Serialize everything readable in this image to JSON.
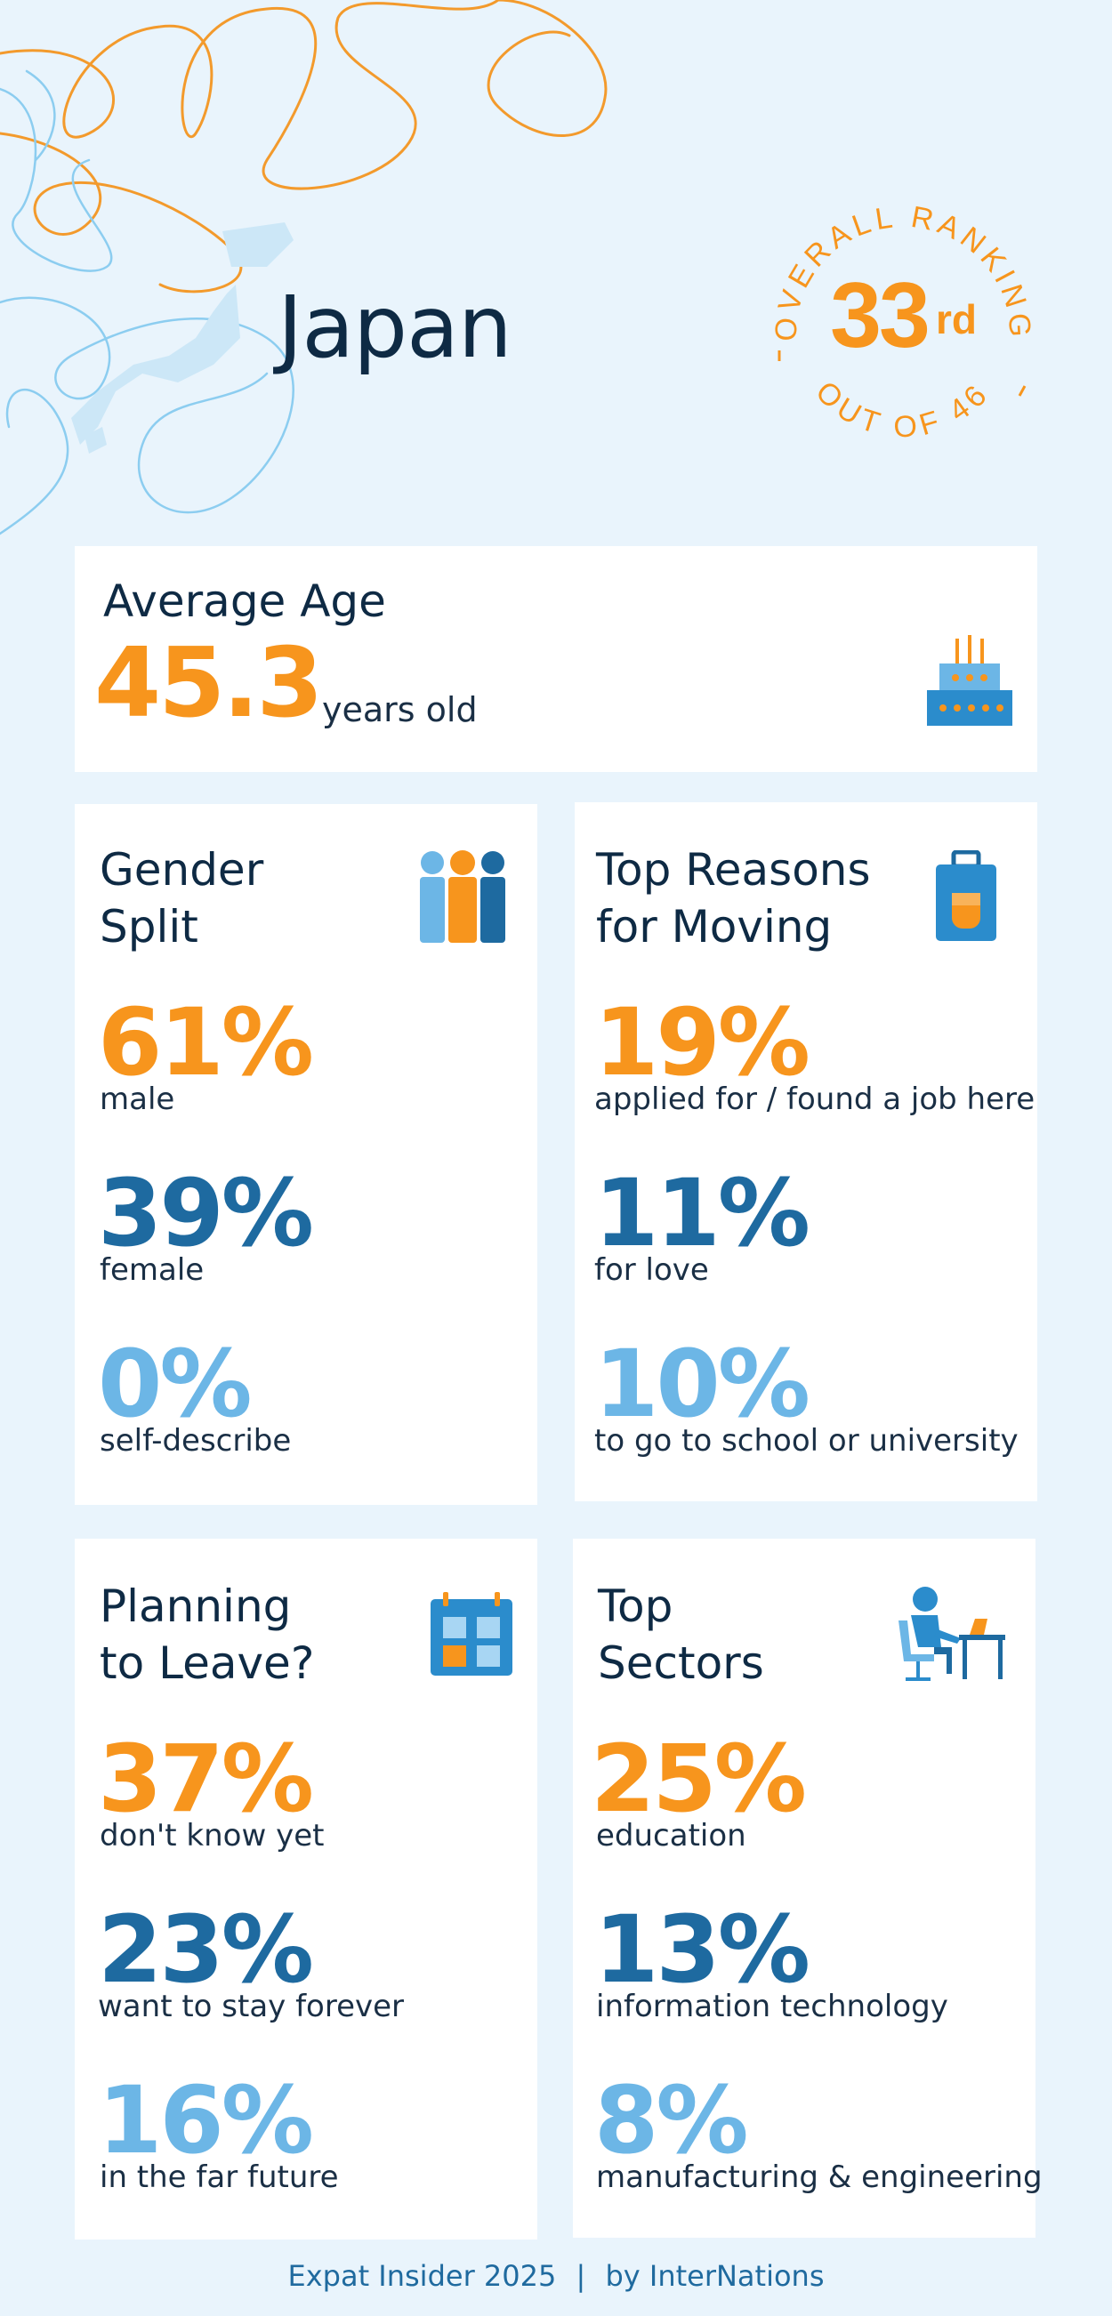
{
  "header": {
    "country": "Japan",
    "ranking": {
      "arc_top": "OVERALL RANKING",
      "arc_bottom": "OUT OF 46",
      "rank_number": "33",
      "rank_suffix": "rd"
    }
  },
  "average_age": {
    "title": "Average Age",
    "value": "45.3",
    "unit": "years old",
    "icon": "birthday-cake-icon"
  },
  "gender_split": {
    "title_line1": "Gender",
    "title_line2": "Split",
    "icon": "people-icon",
    "stats": [
      {
        "value": "61%",
        "label": "male"
      },
      {
        "value": "39%",
        "label": "female"
      },
      {
        "value": "0%",
        "label": "self-describe"
      }
    ]
  },
  "top_reasons": {
    "title_line1": "Top Reasons",
    "title_line2": "for Moving",
    "icon": "suitcase-icon",
    "stats": [
      {
        "value": "19%",
        "label": "applied for / found a job here"
      },
      {
        "value": "11%",
        "label": "for love"
      },
      {
        "value": "10%",
        "label": "to go to school or university"
      }
    ]
  },
  "planning_to_leave": {
    "title_line1": "Planning",
    "title_line2": "to Leave?",
    "icon": "calendar-icon",
    "stats": [
      {
        "value": "37%",
        "label": "don't know yet"
      },
      {
        "value": "23%",
        "label": "want to stay forever"
      },
      {
        "value": "16%",
        "label": "in the far future"
      }
    ]
  },
  "top_sectors": {
    "title_line1": "Top",
    "title_line2": "Sectors",
    "icon": "person-at-desk-icon",
    "stats": [
      {
        "value": "25%",
        "label": "education"
      },
      {
        "value": "13%",
        "label": "information technology"
      },
      {
        "value": "8%",
        "label": "manufacturing & engineering"
      }
    ]
  },
  "footer": {
    "source": "Expat Insider 2025",
    "separator": "|",
    "by": "by InterNations"
  },
  "colors": {
    "background": "#e9f4fc",
    "accent_orange": "#f7951d",
    "accent_dark_blue": "#1e6aa0",
    "accent_light_blue": "#6cb6e6",
    "text_navy": "#0e2a44"
  }
}
